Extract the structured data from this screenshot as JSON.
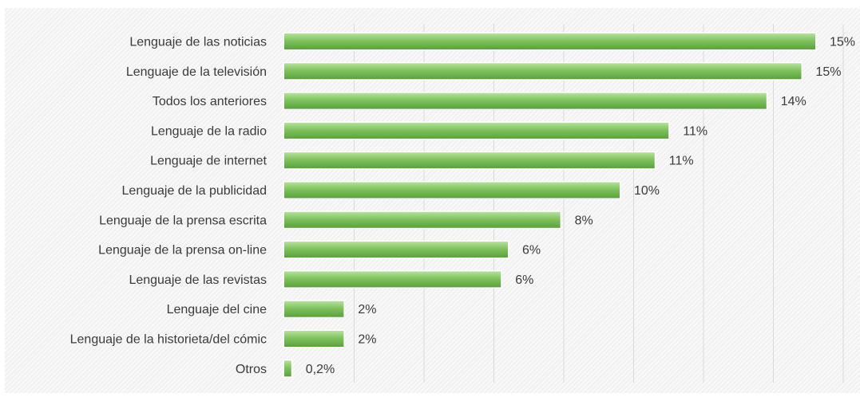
{
  "chart_data": {
    "type": "bar",
    "orientation": "horizontal",
    "categories": [
      "Lenguaje de las noticias",
      "Lenguaje de la televisión",
      "Todos los anteriores",
      "Lenguaje de la radio",
      "Lenguaje de internet",
      "Lenguaje de la publicidad",
      "Lenguaje de la prensa escrita",
      "Lenguaje de la prensa on-line",
      "Lenguaje de las revistas",
      "Lenguaje del cine",
      "Lenguaje de la historieta/del cómic",
      "Otros"
    ],
    "values": [
      15.2,
      14.8,
      13.8,
      11.0,
      10.6,
      9.6,
      7.9,
      6.4,
      6.2,
      1.7,
      1.7,
      0.2
    ],
    "value_labels": [
      "15%",
      "15%",
      "14%",
      "11%",
      "11%",
      "10%",
      "8%",
      "6%",
      "6%",
      "2%",
      "2%",
      "0,2%"
    ],
    "xlim": [
      0,
      16
    ],
    "grid": true,
    "bar_color": "#7fc25f",
    "bar_color_light": "#b5e29b",
    "bar_color_dark": "#5aa23c",
    "title": "",
    "xlabel": "",
    "ylabel": ""
  }
}
